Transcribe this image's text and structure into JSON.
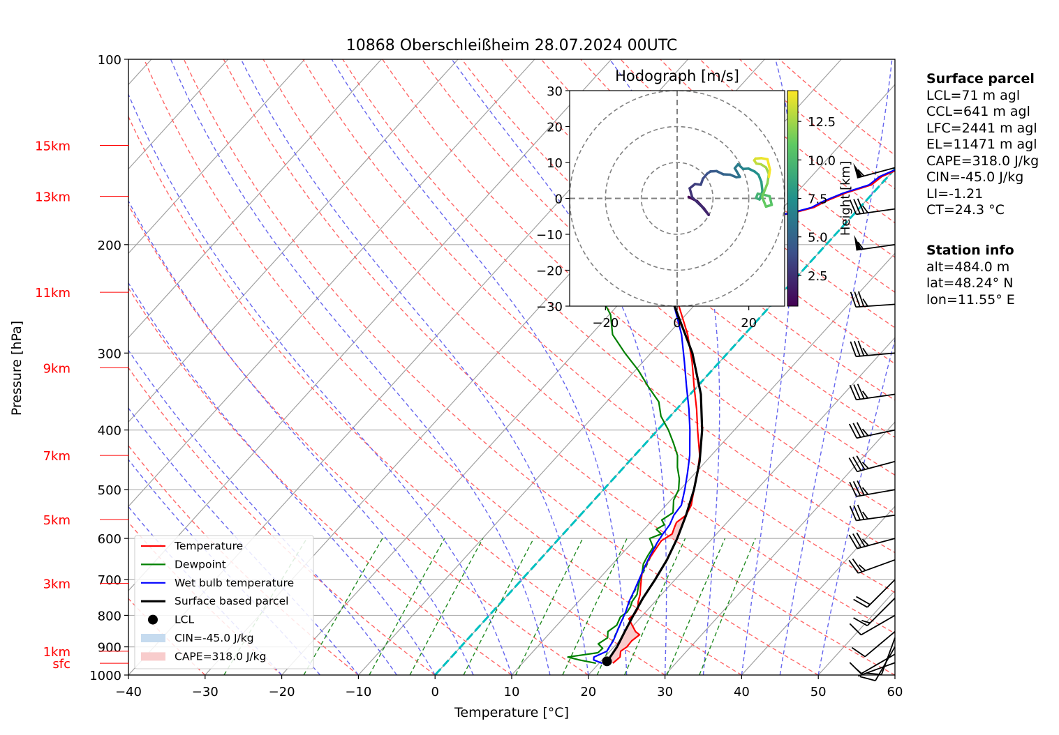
{
  "chart_data": {
    "type": "skew-t",
    "title": "10868 Oberschleißheim 28.07.2024 00UTC",
    "xlabel": "Temperature [°C]",
    "ylabel": "Pressure [hPa]",
    "xlim": [
      -40,
      60
    ],
    "ylim": [
      1000,
      100
    ],
    "xticks": [
      "−40",
      "−30",
      "−20",
      "−10",
      "0",
      "10",
      "20",
      "30",
      "40",
      "50",
      "60"
    ],
    "yticks": [
      {
        "p": 100,
        "label": "100"
      },
      {
        "p": 200,
        "label": "200"
      },
      {
        "p": 300,
        "label": "300"
      },
      {
        "p": 400,
        "label": "400"
      },
      {
        "p": 500,
        "label": "500"
      },
      {
        "p": 600,
        "label": "600"
      },
      {
        "p": 700,
        "label": "700"
      },
      {
        "p": 800,
        "label": "800"
      },
      {
        "p": 900,
        "label": "900"
      },
      {
        "p": 1000,
        "label": "1000"
      }
    ],
    "height_labels": [
      {
        "label": "15km",
        "p": 138
      },
      {
        "label": "13km",
        "p": 167
      },
      {
        "label": "11km",
        "p": 239
      },
      {
        "label": "9km",
        "p": 317
      },
      {
        "label": "7km",
        "p": 440
      },
      {
        "label": "5km",
        "p": 559
      },
      {
        "label": "3km",
        "p": 710
      },
      {
        "label": "1km",
        "p": 915
      },
      {
        "label": "sfc",
        "p": 957
      }
    ],
    "grid": true,
    "legend": {
      "placement": "lower-left",
      "entries": [
        {
          "label": "Temperature",
          "color": "#ff0000",
          "kind": "line"
        },
        {
          "label": "Dewpoint",
          "color": "#008000",
          "kind": "line"
        },
        {
          "label": "Wet bulb temperature",
          "color": "#0000ff",
          "kind": "line"
        },
        {
          "label": "Surface based parcel",
          "color": "#000000",
          "kind": "thickline"
        },
        {
          "label": "LCL",
          "color": "#000000",
          "kind": "dot"
        },
        {
          "label": "CIN=-45.0 J/kg",
          "color": "#c6dbef",
          "kind": "patch"
        },
        {
          "label": "CAPE=318.0 J/kg",
          "color": "#f8cccc",
          "kind": "patch"
        }
      ]
    },
    "series": [
      {
        "name": "Temperature",
        "color": "#ff0000",
        "points": [
          [
            957,
            21.8
          ],
          [
            935,
            22.0
          ],
          [
            915,
            21.4
          ],
          [
            900,
            21.7
          ],
          [
            880,
            21.6
          ],
          [
            860,
            21.9
          ],
          [
            850,
            21.0
          ],
          [
            830,
            19.8
          ],
          [
            810,
            18.6
          ],
          [
            795,
            18.8
          ],
          [
            780,
            18.6
          ],
          [
            760,
            17.8
          ],
          [
            740,
            17.2
          ],
          [
            720,
            16.4
          ],
          [
            700,
            15.6
          ],
          [
            680,
            14.8
          ],
          [
            650,
            14.2
          ],
          [
            620,
            13.8
          ],
          [
            605,
            13.6
          ],
          [
            590,
            14.2
          ],
          [
            575,
            13.7
          ],
          [
            565,
            13.4
          ],
          [
            550,
            13.8
          ],
          [
            530,
            13.3
          ],
          [
            500,
            11.8
          ],
          [
            470,
            10.3
          ],
          [
            440,
            8.5
          ],
          [
            400,
            5.2
          ],
          [
            370,
            2.6
          ],
          [
            340,
            -0.4
          ],
          [
            310,
            -3.6
          ],
          [
            280,
            -7.4
          ],
          [
            250,
            -12.2
          ],
          [
            220,
            -17.8
          ],
          [
            200,
            -21.6
          ],
          [
            190,
            -22.7
          ],
          [
            187,
            -22.6
          ],
          [
            184,
            -17.0
          ],
          [
            181,
            -12.5
          ],
          [
            178,
            -8.2
          ],
          [
            174,
            -6.0
          ],
          [
            170,
            -5.2
          ],
          [
            165,
            -3.6
          ],
          [
            160,
            -1.2
          ],
          [
            155,
            -0.8
          ],
          [
            150,
            0.8
          ],
          [
            145,
            2.2
          ],
          [
            140,
            3.8
          ],
          [
            135,
            6.8
          ]
        ]
      },
      {
        "name": "Dewpoint",
        "color": "#008000",
        "points": [
          [
            957,
            19.6
          ],
          [
            945,
            17.0
          ],
          [
            935,
            15.2
          ],
          [
            928,
            16.8
          ],
          [
            920,
            18.6
          ],
          [
            905,
            18.7
          ],
          [
            890,
            17.6
          ],
          [
            870,
            18.1
          ],
          [
            850,
            17.4
          ],
          [
            830,
            17.8
          ],
          [
            805,
            17.3
          ],
          [
            790,
            17.6
          ],
          [
            775,
            17.4
          ],
          [
            760,
            17.0
          ],
          [
            740,
            16.8
          ],
          [
            720,
            16.1
          ],
          [
            700,
            15.4
          ],
          [
            680,
            14.8
          ],
          [
            660,
            14.0
          ],
          [
            640,
            13.6
          ],
          [
            620,
            13.3
          ],
          [
            600,
            11.8
          ],
          [
            590,
            12.8
          ],
          [
            580,
            11.6
          ],
          [
            570,
            12.1
          ],
          [
            560,
            11.2
          ],
          [
            545,
            11.8
          ],
          [
            520,
            10.4
          ],
          [
            500,
            9.8
          ],
          [
            480,
            8.6
          ],
          [
            460,
            7.0
          ],
          [
            440,
            5.6
          ],
          [
            420,
            3.6
          ],
          [
            400,
            1.4
          ],
          [
            380,
            -1.2
          ],
          [
            360,
            -3.2
          ],
          [
            340,
            -6.4
          ],
          [
            320,
            -9.6
          ],
          [
            300,
            -13.4
          ],
          [
            280,
            -17.2
          ],
          [
            260,
            -19.8
          ],
          [
            245,
            -22.8
          ],
          [
            230,
            -24.6
          ],
          [
            215,
            -26.8
          ],
          [
            200,
            -28.9
          ],
          [
            190,
            -29.6
          ],
          [
            180,
            -30.4
          ],
          [
            175,
            -31.6
          ],
          [
            170,
            -34.2
          ],
          [
            168,
            -36.6
          ],
          [
            166,
            -32.2
          ],
          [
            164,
            -27.2
          ],
          [
            162,
            -28.9
          ],
          [
            160,
            -33.0
          ],
          [
            158,
            -36.3
          ],
          [
            156,
            -32.5
          ],
          [
            155,
            -27.5
          ],
          [
            153,
            -29.6
          ],
          [
            151,
            -32.3
          ],
          [
            150,
            -35.6
          ],
          [
            149,
            -34.0
          ],
          [
            147,
            -34.6
          ],
          [
            145,
            -34.8
          ],
          [
            143,
            -35.4
          ],
          [
            141,
            -36.0
          ],
          [
            139,
            -36.8
          ],
          [
            138,
            -37.1
          ]
        ]
      },
      {
        "name": "Wet bulb temperature",
        "color": "#0000ff",
        "points": [
          [
            957,
            20.4
          ],
          [
            945,
            18.9
          ],
          [
            935,
            18.6
          ],
          [
            915,
            19.6
          ],
          [
            900,
            19.4
          ],
          [
            880,
            19.2
          ],
          [
            850,
            18.6
          ],
          [
            820,
            18.0
          ],
          [
            790,
            17.4
          ],
          [
            760,
            16.6
          ],
          [
            730,
            16.0
          ],
          [
            700,
            15.3
          ],
          [
            670,
            14.6
          ],
          [
            640,
            13.9
          ],
          [
            610,
            13.3
          ],
          [
            590,
            13.0
          ],
          [
            570,
            12.8
          ],
          [
            550,
            12.2
          ],
          [
            530,
            12.0
          ],
          [
            500,
            10.6
          ],
          [
            470,
            9.0
          ],
          [
            440,
            7.2
          ],
          [
            400,
            4.2
          ],
          [
            370,
            1.6
          ],
          [
            340,
            -1.4
          ],
          [
            310,
            -4.6
          ],
          [
            280,
            -8.2
          ],
          [
            250,
            -12.8
          ],
          [
            220,
            -18.2
          ],
          [
            200,
            -22.0
          ],
          [
            190,
            -22.9
          ],
          [
            187,
            -22.9
          ],
          [
            184,
            -17.3
          ],
          [
            181,
            -12.8
          ],
          [
            178,
            -8.5
          ],
          [
            174,
            -6.3
          ],
          [
            170,
            -5.5
          ],
          [
            165,
            -3.9
          ],
          [
            160,
            -1.5
          ],
          [
            155,
            -1.1
          ],
          [
            150,
            0.5
          ],
          [
            145,
            1.9
          ],
          [
            140,
            3.5
          ],
          [
            135,
            6.5
          ]
        ]
      },
      {
        "name": "Surface based parcel",
        "color": "#000000",
        "points": [
          [
            957,
            20.9
          ],
          [
            900,
            20.4
          ],
          [
            850,
            19.6
          ],
          [
            800,
            18.8
          ],
          [
            750,
            18.0
          ],
          [
            700,
            17.4
          ],
          [
            650,
            16.6
          ],
          [
            600,
            15.4
          ],
          [
            550,
            13.8
          ],
          [
            500,
            11.8
          ],
          [
            450,
            9.2
          ],
          [
            400,
            5.8
          ],
          [
            350,
            1.4
          ],
          [
            300,
            -4.6
          ],
          [
            250,
            -12.8
          ],
          [
            200,
            -23.6
          ],
          [
            175,
            -30.6
          ],
          [
            155,
            -36.4
          ],
          [
            137,
            -42.3
          ]
        ]
      }
    ],
    "lcl": {
      "p": 950,
      "t": 20.8
    },
    "freezing_line": {
      "t": 0,
      "color": "#00c0c0"
    },
    "wind_barbs": [
      {
        "p": 955,
        "speed_kt": 5,
        "dir": 250
      },
      {
        "p": 925,
        "speed_kt": 10,
        "dir": 240
      },
      {
        "p": 900,
        "speed_kt": 10,
        "dir": 210
      },
      {
        "p": 870,
        "speed_kt": 10,
        "dir": 200
      },
      {
        "p": 850,
        "speed_kt": 10,
        "dir": 230
      },
      {
        "p": 800,
        "speed_kt": 10,
        "dir": 240
      },
      {
        "p": 750,
        "speed_kt": 15,
        "dir": 225
      },
      {
        "p": 700,
        "speed_kt": 20,
        "dir": 225
      },
      {
        "p": 650,
        "speed_kt": 25,
        "dir": 250
      },
      {
        "p": 600,
        "speed_kt": 35,
        "dir": 255
      },
      {
        "p": 550,
        "speed_kt": 35,
        "dir": 262
      },
      {
        "p": 500,
        "speed_kt": 35,
        "dir": 260
      },
      {
        "p": 450,
        "speed_kt": 35,
        "dir": 255
      },
      {
        "p": 400,
        "speed_kt": 35,
        "dir": 258
      },
      {
        "p": 350,
        "speed_kt": 35,
        "dir": 262
      },
      {
        "p": 300,
        "speed_kt": 35,
        "dir": 265
      },
      {
        "p": 250,
        "speed_kt": 35,
        "dir": 266
      },
      {
        "p": 200,
        "speed_kt": 55,
        "dir": 262
      },
      {
        "p": 175,
        "speed_kt": 35,
        "dir": 262
      },
      {
        "p": 150,
        "speed_kt": 55,
        "dir": 255
      }
    ],
    "hodograph": {
      "title": "Hodograph [m/s]",
      "xlim": [
        -30,
        30
      ],
      "ylim": [
        -30,
        30
      ],
      "ticks": [
        "−20",
        "0",
        "20"
      ],
      "yticks": [
        "30",
        "20",
        "10",
        "0",
        "−10",
        "−20",
        "−30"
      ],
      "rings": [
        10,
        20,
        30
      ],
      "colorbar": {
        "label": "Height [km]",
        "ticks": [
          "2.5",
          "5.0",
          "7.5",
          "10.0",
          "12.5"
        ],
        "range": [
          0.5,
          14.5
        ]
      },
      "points": [
        [
          3.2,
          0.4,
          0.5
        ],
        [
          5.6,
          -0.8,
          1.0
        ],
        [
          7.5,
          -2.8,
          1.5
        ],
        [
          8.8,
          -4.6,
          2.0
        ],
        [
          7.0,
          -2.4,
          2.3
        ],
        [
          4.2,
          0.3,
          2.6
        ],
        [
          3.5,
          2.8,
          2.9
        ],
        [
          5.0,
          4.0,
          3.2
        ],
        [
          6.6,
          3.8,
          3.5
        ],
        [
          7.2,
          5.5,
          3.8
        ],
        [
          8.4,
          6.9,
          4.1
        ],
        [
          9.3,
          7.5,
          4.4
        ],
        [
          11.0,
          7.6,
          4.7
        ],
        [
          12.9,
          6.7,
          5.0
        ],
        [
          14.8,
          6.6,
          5.3
        ],
        [
          16.5,
          5.9,
          5.6
        ],
        [
          17.5,
          6.0,
          5.9
        ],
        [
          16.1,
          8.4,
          6.2
        ],
        [
          17.0,
          9.5,
          6.5
        ],
        [
          18.4,
          8.2,
          6.8
        ],
        [
          19.9,
          8.3,
          7.1
        ],
        [
          21.6,
          7.5,
          7.4
        ],
        [
          22.7,
          6.6,
          7.8
        ],
        [
          23.5,
          4.6,
          8.2
        ],
        [
          23.8,
          2.0,
          8.6
        ],
        [
          23.0,
          -0.3,
          9.0
        ],
        [
          22.0,
          0.1,
          9.4
        ],
        [
          22.5,
          1.3,
          9.8
        ],
        [
          24.2,
          1.0,
          10.2
        ],
        [
          25.8,
          0.6,
          10.5
        ],
        [
          26.4,
          -1.8,
          10.8
        ],
        [
          24.8,
          -2.3,
          11.1
        ],
        [
          23.7,
          0.4,
          11.4
        ],
        [
          24.5,
          2.4,
          11.7
        ],
        [
          25.2,
          4.2,
          12.0
        ],
        [
          25.6,
          6.8,
          12.3
        ],
        [
          24.8,
          8.6,
          12.6
        ],
        [
          23.4,
          9.5,
          12.9
        ],
        [
          22.1,
          9.7,
          13.2
        ],
        [
          21.5,
          10.6,
          13.5
        ],
        [
          21.9,
          11.1,
          13.8
        ],
        [
          23.5,
          11.2,
          14.1
        ],
        [
          25.2,
          10.9,
          14.3
        ],
        [
          25.9,
          8.0,
          14.4
        ],
        [
          25.6,
          6.0,
          14.5
        ]
      ]
    }
  },
  "surface_parcel": {
    "heading": "Surface parcel",
    "lines": [
      "LCL=71 m agl",
      "CCL=641 m agl",
      "LFC=2441 m agl",
      "EL=11471 m agl",
      "CAPE=318.0 J/kg",
      "CIN=-45.0 J/kg",
      "LI=-1.21",
      "CT=24.3 °C"
    ]
  },
  "station_info": {
    "heading": "Station info",
    "lines": [
      "alt=484.0 m",
      "lat=48.24° N",
      "lon=11.55° E"
    ]
  },
  "colors": {
    "dry_adiabat": "#ff6666",
    "moist_adiabat": "#6666ee",
    "mixing_ratio": "#228b22",
    "isotherm": "#a0a0a0",
    "height_label": "#ff0000"
  }
}
